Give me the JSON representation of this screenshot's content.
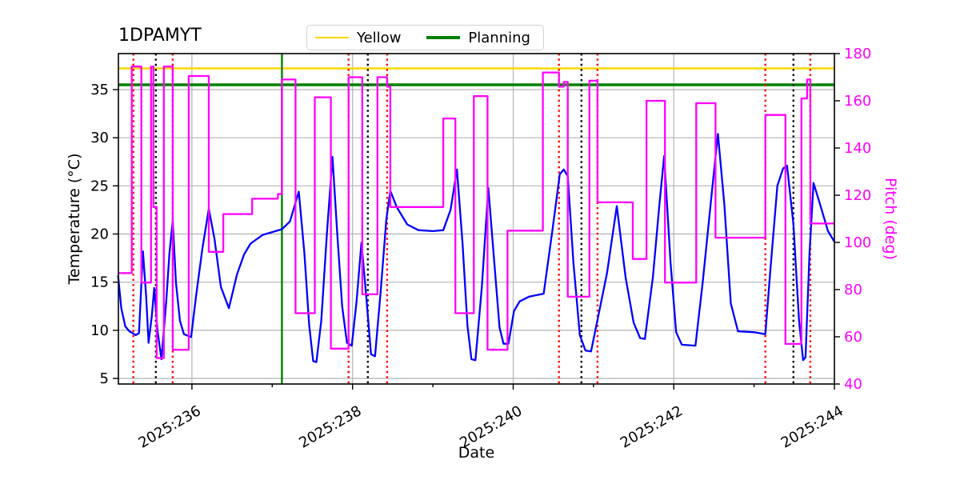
{
  "title": "1DPAMYT",
  "legend": {
    "items": [
      {
        "label": "Yellow",
        "color": "#ffd700",
        "linewidth": 2.4
      },
      {
        "label": "Planning",
        "color": "#008000",
        "linewidth": 3.4
      }
    ]
  },
  "axes": {
    "x": {
      "label": "Date",
      "range": [
        235.084,
        244.0
      ],
      "major_ticks": [
        {
          "value": 236,
          "label": "2025:236"
        },
        {
          "value": 238,
          "label": "2025:238"
        },
        {
          "value": 240,
          "label": "2025:240"
        },
        {
          "value": 242,
          "label": "2025:242"
        },
        {
          "value": 244,
          "label": "2025:244"
        }
      ],
      "minor_ticks": [
        237,
        239,
        241,
        243
      ],
      "tick_rotation_deg": 30
    },
    "y_left": {
      "label": "Temperature (°C)",
      "range": [
        4.42,
        38.74
      ],
      "ticks": [
        5,
        10,
        15,
        20,
        25,
        30,
        35
      ],
      "color": "#000000"
    },
    "y_right": {
      "label": "Pitch (deg)",
      "range": [
        40,
        180
      ],
      "ticks": [
        40,
        60,
        80,
        100,
        120,
        140,
        160,
        180
      ],
      "color": "#ff00ff"
    }
  },
  "chart_data": {
    "type": "line",
    "grid": true,
    "grid_color": "#b4b4b4",
    "series": [
      {
        "name": "Temperature",
        "axis": "left",
        "color": "#0000ff",
        "style": "line",
        "points": [
          [
            235.08,
            15.7
          ],
          [
            235.12,
            12.3
          ],
          [
            235.17,
            10.4
          ],
          [
            235.22,
            9.9
          ],
          [
            235.3,
            9.5
          ],
          [
            235.34,
            9.7
          ],
          [
            235.39,
            18.2
          ],
          [
            235.43,
            13.5
          ],
          [
            235.46,
            8.7
          ],
          [
            235.5,
            11.5
          ],
          [
            235.53,
            14.4
          ],
          [
            235.57,
            10.0
          ],
          [
            235.62,
            7.0
          ],
          [
            235.68,
            13.0
          ],
          [
            235.72,
            18.0
          ],
          [
            235.76,
            21.4
          ],
          [
            235.8,
            15.0
          ],
          [
            235.85,
            11.0
          ],
          [
            235.9,
            9.6
          ],
          [
            235.99,
            9.3
          ],
          [
            236.05,
            13.5
          ],
          [
            236.13,
            18.5
          ],
          [
            236.21,
            22.6
          ],
          [
            236.28,
            19.5
          ],
          [
            236.36,
            14.5
          ],
          [
            236.46,
            12.3
          ],
          [
            236.56,
            15.8
          ],
          [
            236.65,
            17.9
          ],
          [
            236.73,
            19.0
          ],
          [
            236.88,
            19.9
          ],
          [
            237.0,
            20.2
          ],
          [
            237.12,
            20.5
          ],
          [
            237.22,
            21.3
          ],
          [
            237.33,
            24.4
          ],
          [
            237.4,
            18.0
          ],
          [
            237.46,
            10.5
          ],
          [
            237.51,
            6.8
          ],
          [
            237.55,
            6.7
          ],
          [
            237.61,
            11.0
          ],
          [
            237.68,
            20.0
          ],
          [
            237.75,
            28.0
          ],
          [
            237.81,
            20.0
          ],
          [
            237.87,
            12.5
          ],
          [
            237.93,
            8.7
          ],
          [
            237.99,
            8.4
          ],
          [
            238.05,
            13.0
          ],
          [
            238.11,
            19.1
          ],
          [
            238.17,
            13.5
          ],
          [
            238.23,
            7.5
          ],
          [
            238.28,
            7.3
          ],
          [
            238.35,
            14.0
          ],
          [
            238.42,
            21.5
          ],
          [
            238.47,
            24.5
          ],
          [
            238.55,
            22.8
          ],
          [
            238.68,
            21.0
          ],
          [
            238.82,
            20.4
          ],
          [
            239.0,
            20.3
          ],
          [
            239.13,
            20.4
          ],
          [
            239.22,
            22.5
          ],
          [
            239.3,
            26.7
          ],
          [
            239.37,
            19.0
          ],
          [
            239.43,
            10.5
          ],
          [
            239.48,
            7.0
          ],
          [
            239.53,
            6.9
          ],
          [
            239.61,
            14.5
          ],
          [
            239.69,
            24.8
          ],
          [
            239.77,
            16.5
          ],
          [
            239.83,
            10.3
          ],
          [
            239.88,
            8.6
          ],
          [
            239.94,
            8.6
          ],
          [
            240.01,
            12.0
          ],
          [
            240.08,
            13.0
          ],
          [
            240.2,
            13.5
          ],
          [
            240.38,
            13.8
          ],
          [
            240.49,
            20.5
          ],
          [
            240.58,
            26.2
          ],
          [
            240.63,
            26.7
          ],
          [
            240.68,
            26.0
          ],
          [
            240.75,
            17.0
          ],
          [
            240.83,
            9.5
          ],
          [
            240.9,
            7.9
          ],
          [
            240.97,
            7.8
          ],
          [
            241.06,
            11.5
          ],
          [
            241.17,
            16.0
          ],
          [
            241.29,
            22.9
          ],
          [
            241.4,
            15.5
          ],
          [
            241.5,
            10.8
          ],
          [
            241.58,
            9.2
          ],
          [
            241.64,
            9.1
          ],
          [
            241.74,
            15.5
          ],
          [
            241.82,
            23.0
          ],
          [
            241.88,
            28.1
          ],
          [
            241.96,
            17.0
          ],
          [
            242.03,
            9.8
          ],
          [
            242.1,
            8.5
          ],
          [
            242.27,
            8.4
          ],
          [
            242.36,
            15.0
          ],
          [
            242.47,
            24.0
          ],
          [
            242.55,
            30.4
          ],
          [
            242.63,
            23.0
          ],
          [
            242.71,
            12.8
          ],
          [
            242.8,
            9.9
          ],
          [
            243.0,
            9.8
          ],
          [
            243.14,
            9.6
          ],
          [
            243.2,
            16.0
          ],
          [
            243.29,
            25.0
          ],
          [
            243.36,
            26.8
          ],
          [
            243.41,
            27.1
          ],
          [
            243.49,
            21.0
          ],
          [
            243.56,
            11.0
          ],
          [
            243.61,
            6.9
          ],
          [
            243.64,
            7.2
          ],
          [
            243.69,
            18.0
          ],
          [
            243.74,
            25.3
          ],
          [
            243.81,
            23.4
          ],
          [
            243.92,
            20.3
          ],
          [
            244.0,
            19.2
          ]
        ]
      },
      {
        "name": "Pitch",
        "axis": "right",
        "color": "#ff00ff",
        "style": "step-post",
        "points": [
          [
            235.08,
            87
          ],
          [
            235.25,
            174.5
          ],
          [
            235.37,
            83
          ],
          [
            235.49,
            174.5
          ],
          [
            235.52,
            115
          ],
          [
            235.56,
            51
          ],
          [
            235.65,
            174.5
          ],
          [
            235.76,
            54.5
          ],
          [
            235.96,
            170.5
          ],
          [
            236.21,
            96
          ],
          [
            236.39,
            112
          ],
          [
            236.75,
            118.5
          ],
          [
            237.07,
            120.5
          ],
          [
            237.12,
            169
          ],
          [
            237.29,
            70
          ],
          [
            237.53,
            161.5
          ],
          [
            237.73,
            55
          ],
          [
            237.95,
            170
          ],
          [
            238.12,
            78
          ],
          [
            238.31,
            170
          ],
          [
            238.43,
            166
          ],
          [
            238.47,
            115
          ],
          [
            239.13,
            152.5
          ],
          [
            239.28,
            70
          ],
          [
            239.51,
            162
          ],
          [
            239.68,
            54.5
          ],
          [
            239.93,
            105
          ],
          [
            240.37,
            172
          ],
          [
            240.57,
            166
          ],
          [
            240.63,
            168
          ],
          [
            240.68,
            77
          ],
          [
            240.95,
            168.5
          ],
          [
            241.05,
            117
          ],
          [
            241.49,
            93
          ],
          [
            241.66,
            160
          ],
          [
            241.89,
            83
          ],
          [
            242.28,
            159
          ],
          [
            242.52,
            102
          ],
          [
            243.14,
            154
          ],
          [
            243.39,
            57
          ],
          [
            243.59,
            161
          ],
          [
            243.66,
            169
          ],
          [
            243.7,
            108
          ],
          [
            244.0,
            108
          ]
        ]
      }
    ],
    "reference_lines": {
      "horizontal": [
        {
          "name": "Yellow",
          "value": 37.2,
          "axis": "left",
          "color": "#ffd700",
          "style": "solid",
          "linewidth": 2.4
        },
        {
          "name": "Planning",
          "value": 35.5,
          "axis": "left",
          "color": "#008000",
          "style": "solid",
          "linewidth": 3.4
        }
      ],
      "vertical": [
        {
          "x": 235.27,
          "color": "#ff0000",
          "style": "dotted"
        },
        {
          "x": 235.55,
          "color": "#000000",
          "style": "dotted"
        },
        {
          "x": 235.76,
          "color": "#ff0000",
          "style": "dotted"
        },
        {
          "x": 237.12,
          "color": "#008000",
          "style": "solid"
        },
        {
          "x": 237.95,
          "color": "#ff0000",
          "style": "dotted"
        },
        {
          "x": 238.19,
          "color": "#000000",
          "style": "dotted"
        },
        {
          "x": 238.43,
          "color": "#ff0000",
          "style": "dotted"
        },
        {
          "x": 240.57,
          "color": "#ff0000",
          "style": "dotted"
        },
        {
          "x": 240.85,
          "color": "#000000",
          "style": "dotted"
        },
        {
          "x": 241.05,
          "color": "#ff0000",
          "style": "dotted"
        },
        {
          "x": 243.14,
          "color": "#ff0000",
          "style": "dotted"
        },
        {
          "x": 243.49,
          "color": "#000000",
          "style": "dotted"
        },
        {
          "x": 243.7,
          "color": "#ff0000",
          "style": "dotted"
        }
      ]
    }
  }
}
